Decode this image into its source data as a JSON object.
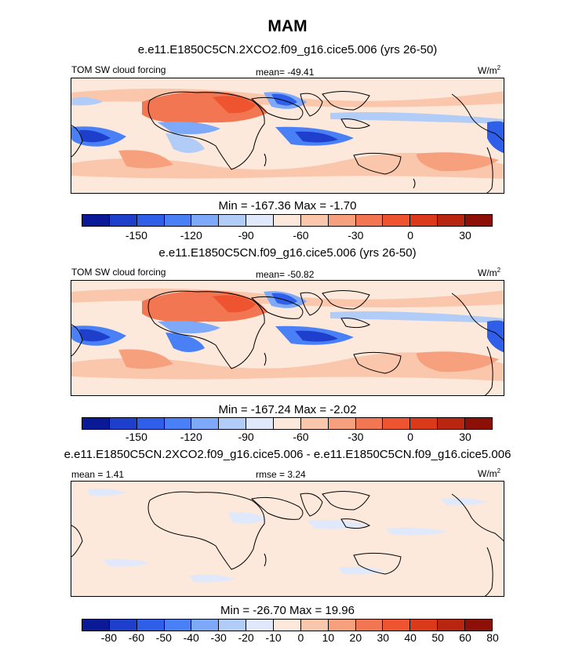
{
  "title": "MAM",
  "panels": [
    {
      "name": "panel-1",
      "case_title": "e.e11.E1850C5CN.2XCO2.f09_g16.cice5.006 (yrs 26-50)",
      "left_label": "TOM SW cloud forcing",
      "center_label": "mean= -49.41",
      "right_label": "W/m",
      "units_sup": "2",
      "minmax": "Min = -167.36 Max =  -1.70",
      "ticks": [
        "-150",
        "-120",
        "-90",
        "-60",
        "-30",
        "0",
        "30"
      ]
    },
    {
      "name": "panel-2",
      "case_title": "e.e11.E1850C5CN.f09_g16.cice5.006 (yrs 26-50)",
      "left_label": "TOM SW cloud forcing",
      "center_label": "mean= -50.82",
      "right_label": "W/m",
      "units_sup": "2",
      "minmax": "Min = -167.24 Max =  -2.02",
      "ticks": [
        "-150",
        "-120",
        "-90",
        "-60",
        "-30",
        "0",
        "30"
      ]
    },
    {
      "name": "panel-3",
      "case_title": "e.e11.E1850C5CN.2XCO2.f09_g16.cice5.006 - e.e11.E1850C5CN.f09_g16.cice5.006",
      "left_label": "mean =   1.41",
      "center_label": "rmse =   3.24",
      "right_label": "W/m",
      "units_sup": "2",
      "minmax": "Min = -26.70 Max =  19.96",
      "ticks": [
        "-80",
        "-60",
        "-50",
        "-40",
        "-30",
        "-20",
        "-10",
        "0",
        "10",
        "20",
        "30",
        "40",
        "50",
        "60",
        "80"
      ]
    }
  ],
  "colors": {
    "cbar": [
      "#0a1a96",
      "#1d3fcc",
      "#2f5fe8",
      "#4a80f5",
      "#7ea8f8",
      "#b0ccf7",
      "#dfe9fb",
      "#fde9dc",
      "#fbc7ac",
      "#f7a07d",
      "#f37652",
      "#ee5430",
      "#db3a1a",
      "#b82612",
      "#8c1008"
    ],
    "ocean_sw": "#fde9dc",
    "desert_high": "#f37652",
    "sat_warm": "#fbc7ac",
    "cloudy": "#4a80f5",
    "diff_bg": "#fde9dc",
    "diff_blue": "#dfe9fb"
  },
  "chart_data": {
    "type": "heatmap",
    "title": "MAM",
    "variable": "TOM SW cloud forcing",
    "units": "W/m2",
    "maps": [
      {
        "case": "e.e11.E1850C5CN.2XCO2.f09_g16.cice5.006 (yrs 26-50)",
        "mean": -49.41,
        "min": -167.36,
        "max": -1.7,
        "levels": [
          -150,
          -120,
          -90,
          -60,
          -30,
          0,
          30
        ]
      },
      {
        "case": "e.e11.E1850C5CN.f09_g16.cice5.006 (yrs 26-50)",
        "mean": -50.82,
        "min": -167.24,
        "max": -2.02,
        "levels": [
          -150,
          -120,
          -90,
          -60,
          -30,
          0,
          30
        ]
      },
      {
        "case": "difference",
        "mean": 1.41,
        "rmse": 3.24,
        "min": -26.7,
        "max": 19.96,
        "levels": [
          -80,
          -60,
          -50,
          -40,
          -30,
          -20,
          -10,
          0,
          10,
          20,
          30,
          40,
          50,
          60,
          80
        ]
      }
    ]
  }
}
